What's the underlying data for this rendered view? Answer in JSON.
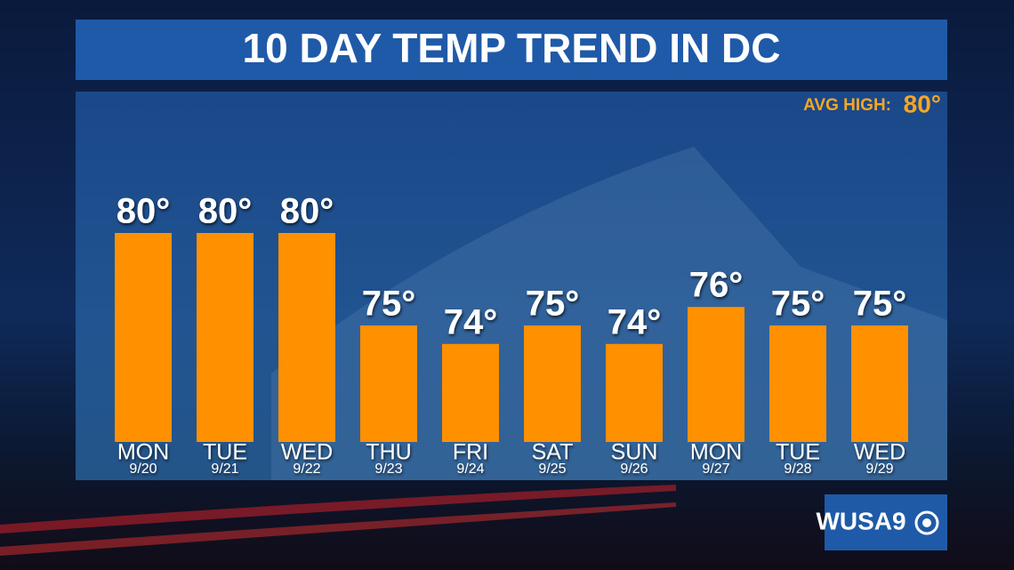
{
  "chart_data": {
    "type": "bar",
    "title": "10 DAY TEMP TREND IN DC",
    "avg_high_label": "AVG HIGH:",
    "avg_high": "80°",
    "categories": [
      "MON",
      "TUE",
      "WED",
      "THU",
      "FRI",
      "SAT",
      "SUN",
      "MON",
      "TUE",
      "WED"
    ],
    "dates": [
      "9/20",
      "9/21",
      "9/22",
      "9/23",
      "9/24",
      "9/25",
      "9/26",
      "9/27",
      "9/28",
      "9/29"
    ],
    "values": [
      80,
      80,
      80,
      75,
      74,
      75,
      74,
      76,
      75,
      75
    ],
    "value_labels": [
      "80°",
      "80°",
      "80°",
      "75°",
      "74°",
      "75°",
      "74°",
      "76°",
      "75°",
      "75°"
    ],
    "color": "#ff9000",
    "ylim": [
      68.7,
      80
    ]
  },
  "logo": "WUSA9"
}
